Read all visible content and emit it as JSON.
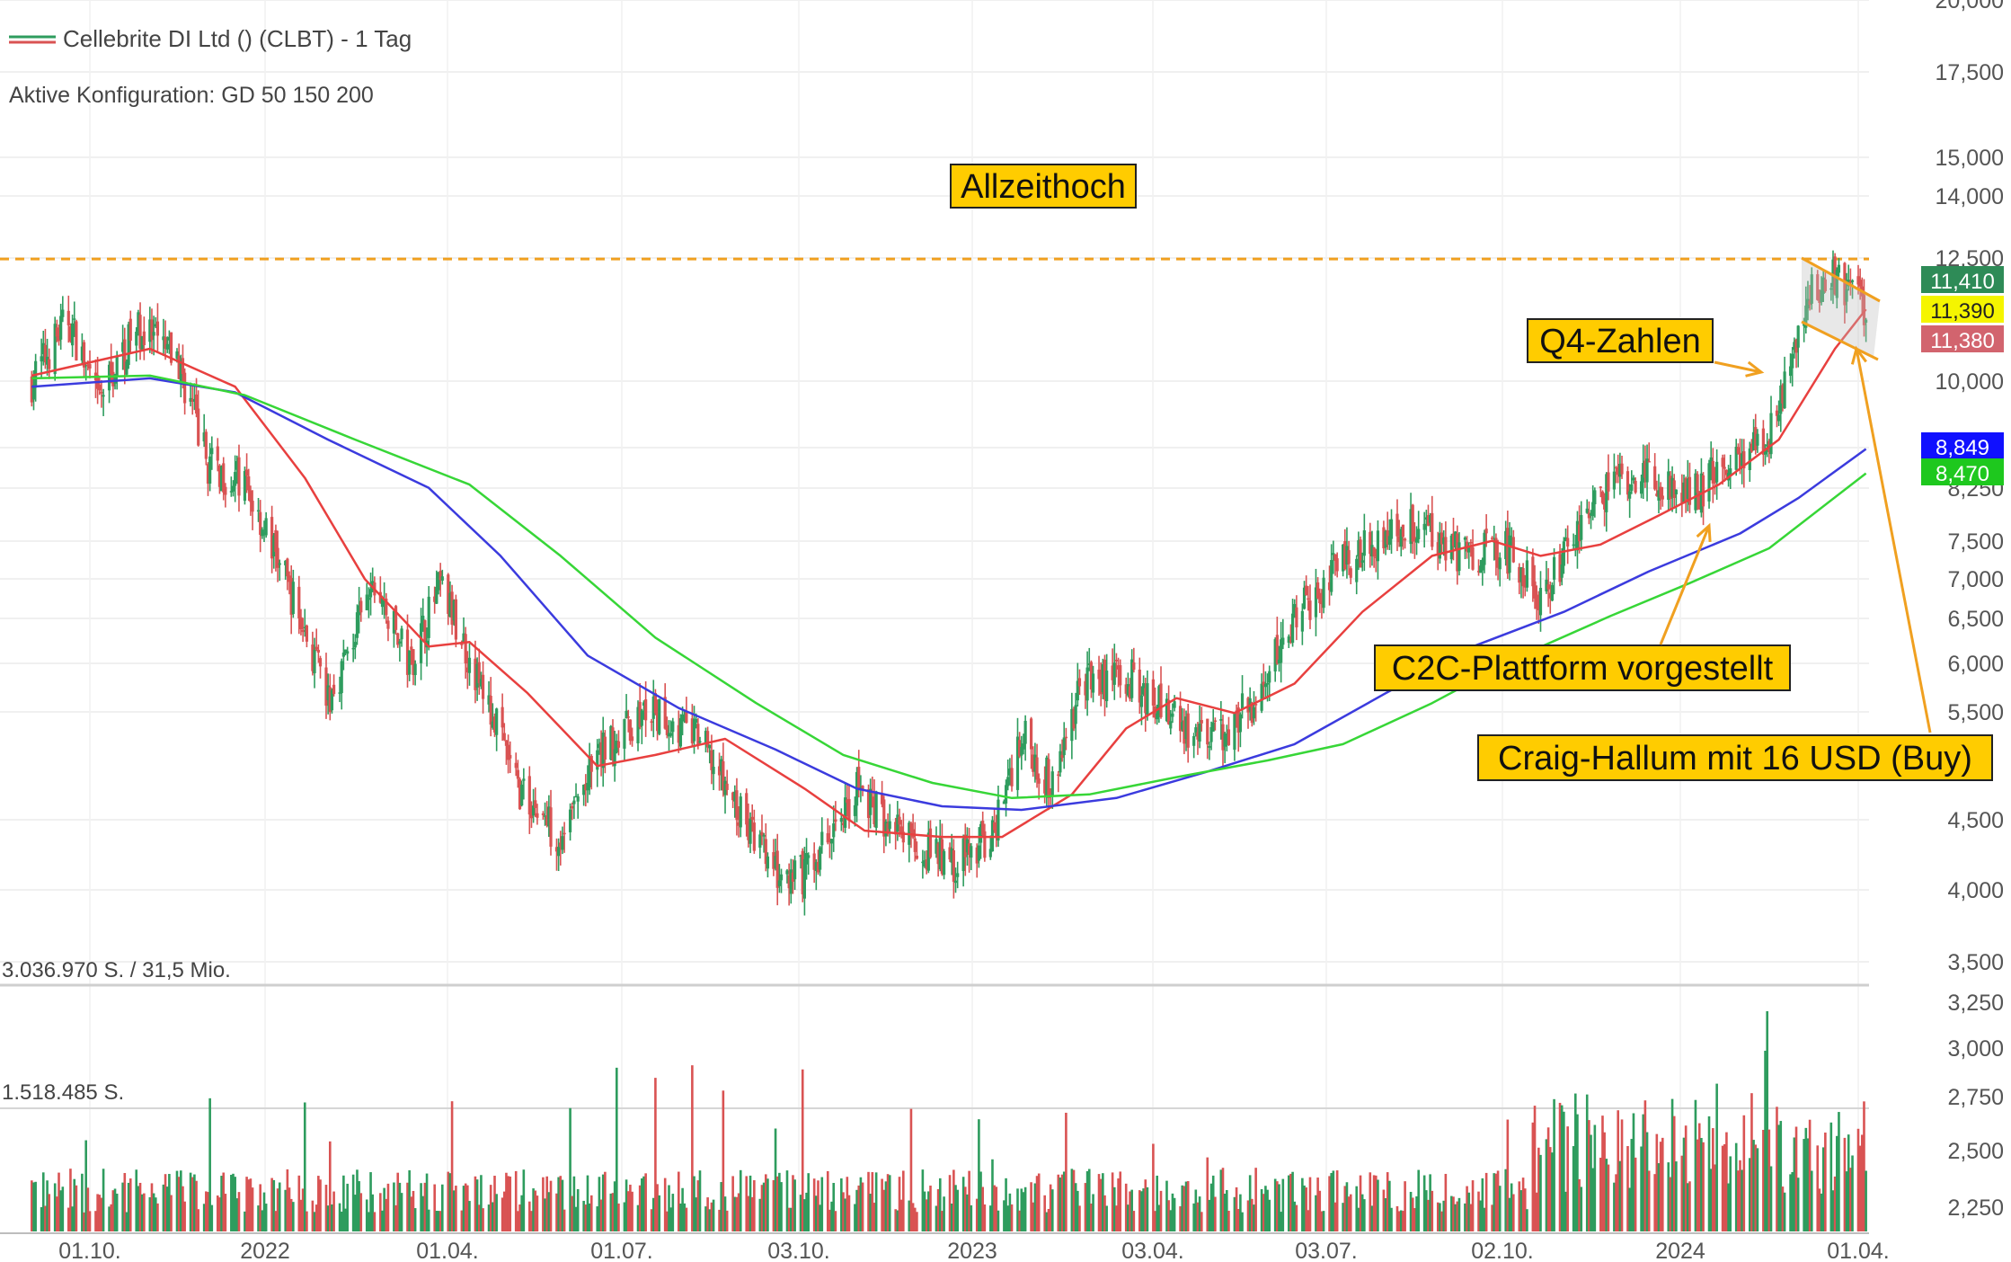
{
  "header": {
    "title": "Cellebrite DI Ltd () (CLBT) - 1 Tag",
    "config": "Aktive Konfiguration: GD 50 150 200"
  },
  "volume_panel": {
    "total_label": "3.036.970 S. / 31,5 Mio.",
    "half_label": "1.518.485 S."
  },
  "colors": {
    "up_candle": "#2e9c5e",
    "down_candle": "#d95353",
    "ma50": "#e8403f",
    "ma150": "#3b3bde",
    "ma200": "#37d637",
    "ath_line": "#f0a020",
    "annotation_bg": "#ffcc00",
    "badge_close": "#2e8b57",
    "badge_last": "#f5f500",
    "badge_ma50": "#d2646e",
    "badge_ma150": "#1010ff",
    "badge_ma200": "#1ec81e"
  },
  "chart_data": {
    "type": "line",
    "subtype": "candlestick with moving averages and volume",
    "x_ticks": [
      "01.10.",
      "2022",
      "01.04.",
      "01.07.",
      "03.10.",
      "2023",
      "03.04.",
      "03.07.",
      "02.10.",
      "2024",
      "01.04."
    ],
    "y_ticks": [
      "3,500",
      "4,000",
      "4,500",
      "5,500",
      "6,000",
      "6,500",
      "7,000",
      "7,500",
      "8,250",
      "8,849",
      "10,000",
      "12,500",
      "14,000",
      "15,000",
      "17,500",
      "20,000"
    ],
    "volume_y_ticks": [
      "2,250",
      "2,500",
      "2,750",
      "3,000",
      "3,250"
    ],
    "y_scale": "log",
    "ylim": [
      3.5,
      20.0
    ],
    "grid": true,
    "price_path": [
      {
        "date": "2021-09-01",
        "close": 10.0
      },
      {
        "date": "2021-09-20",
        "close": 11.2
      },
      {
        "date": "2021-10-05",
        "close": 9.6
      },
      {
        "date": "2021-10-25",
        "close": 11.0
      },
      {
        "date": "2021-11-15",
        "close": 10.4
      },
      {
        "date": "2021-12-01",
        "close": 8.6
      },
      {
        "date": "2021-12-20",
        "close": 8.3
      },
      {
        "date": "2022-01-10",
        "close": 7.0
      },
      {
        "date": "2022-02-01",
        "close": 5.6
      },
      {
        "date": "2022-02-25",
        "close": 6.9
      },
      {
        "date": "2022-03-15",
        "close": 6.0
      },
      {
        "date": "2022-03-31",
        "close": 6.9
      },
      {
        "date": "2022-04-20",
        "close": 5.8
      },
      {
        "date": "2022-05-10",
        "close": 4.8
      },
      {
        "date": "2022-06-01",
        "close": 4.4
      },
      {
        "date": "2022-06-25",
        "close": 5.2
      },
      {
        "date": "2022-07-15",
        "close": 5.5
      },
      {
        "date": "2022-08-10",
        "close": 5.3
      },
      {
        "date": "2022-09-01",
        "close": 4.6
      },
      {
        "date": "2022-09-25",
        "close": 4.0
      },
      {
        "date": "2022-10-10",
        "close": 4.2
      },
      {
        "date": "2022-11-01",
        "close": 4.8
      },
      {
        "date": "2022-11-25",
        "close": 4.4
      },
      {
        "date": "2022-12-20",
        "close": 4.2
      },
      {
        "date": "2023-01-10",
        "close": 4.4
      },
      {
        "date": "2023-01-25",
        "close": 5.3
      },
      {
        "date": "2023-02-10",
        "close": 4.8
      },
      {
        "date": "2023-02-25",
        "close": 5.8
      },
      {
        "date": "2023-03-20",
        "close": 5.9
      },
      {
        "date": "2023-04-10",
        "close": 5.5
      },
      {
        "date": "2023-05-01",
        "close": 5.2
      },
      {
        "date": "2023-05-25",
        "close": 5.6
      },
      {
        "date": "2023-06-15",
        "close": 6.5
      },
      {
        "date": "2023-07-05",
        "close": 7.1
      },
      {
        "date": "2023-07-25",
        "close": 7.5
      },
      {
        "date": "2023-08-20",
        "close": 7.8
      },
      {
        "date": "2023-09-10",
        "close": 7.3
      },
      {
        "date": "2023-10-01",
        "close": 7.4
      },
      {
        "date": "2023-10-20",
        "close": 6.8
      },
      {
        "date": "2023-11-10",
        "close": 7.6
      },
      {
        "date": "2023-11-25",
        "close": 8.3
      },
      {
        "date": "2023-12-15",
        "close": 8.4
      },
      {
        "date": "2024-01-10",
        "close": 8.2
      },
      {
        "date": "2024-01-25",
        "close": 8.8
      },
      {
        "date": "2024-02-15",
        "close": 9.0
      },
      {
        "date": "2024-02-28",
        "close": 10.8
      },
      {
        "date": "2024-03-05",
        "close": 11.6
      },
      {
        "date": "2024-03-15",
        "close": 12.1
      },
      {
        "date": "2024-03-25",
        "close": 11.9
      },
      {
        "date": "2024-04-05",
        "close": 11.4
      }
    ],
    "series": [
      {
        "name": "GD 50",
        "points": [
          {
            "date": "2021-09-01",
            "close": 10.1
          },
          {
            "date": "2021-11-01",
            "close": 10.6
          },
          {
            "date": "2021-12-15",
            "close": 9.9
          },
          {
            "date": "2022-01-20",
            "close": 8.4
          },
          {
            "date": "2022-02-20",
            "close": 7.0
          },
          {
            "date": "2022-03-25",
            "close": 6.2
          },
          {
            "date": "2022-04-15",
            "close": 6.25
          },
          {
            "date": "2022-05-15",
            "close": 5.7
          },
          {
            "date": "2022-06-20",
            "close": 5.0
          },
          {
            "date": "2022-07-20",
            "close": 5.1
          },
          {
            "date": "2022-08-25",
            "close": 5.25
          },
          {
            "date": "2022-10-05",
            "close": 4.8
          },
          {
            "date": "2022-11-05",
            "close": 4.45
          },
          {
            "date": "2022-12-15",
            "close": 4.4
          },
          {
            "date": "2023-01-15",
            "close": 4.4
          },
          {
            "date": "2023-02-20",
            "close": 4.75
          },
          {
            "date": "2023-03-20",
            "close": 5.35
          },
          {
            "date": "2023-04-15",
            "close": 5.65
          },
          {
            "date": "2023-05-15",
            "close": 5.5
          },
          {
            "date": "2023-06-15",
            "close": 5.8
          },
          {
            "date": "2023-07-20",
            "close": 6.6
          },
          {
            "date": "2023-08-25",
            "close": 7.3
          },
          {
            "date": "2023-09-25",
            "close": 7.5
          },
          {
            "date": "2023-10-20",
            "close": 7.3
          },
          {
            "date": "2023-11-20",
            "close": 7.45
          },
          {
            "date": "2023-12-20",
            "close": 7.85
          },
          {
            "date": "2024-01-20",
            "close": 8.3
          },
          {
            "date": "2024-02-20",
            "close": 9.0
          },
          {
            "date": "2024-03-20",
            "close": 10.6
          },
          {
            "date": "2024-04-05",
            "close": 11.38
          }
        ]
      },
      {
        "name": "GD 150",
        "points": [
          {
            "date": "2021-09-01",
            "close": 9.9
          },
          {
            "date": "2021-11-01",
            "close": 10.05
          },
          {
            "date": "2021-12-15",
            "close": 9.8
          },
          {
            "date": "2022-02-01",
            "close": 9.0
          },
          {
            "date": "2022-03-25",
            "close": 8.25
          },
          {
            "date": "2022-05-01",
            "close": 7.3
          },
          {
            "date": "2022-06-15",
            "close": 6.1
          },
          {
            "date": "2022-08-01",
            "close": 5.55
          },
          {
            "date": "2022-09-20",
            "close": 5.15
          },
          {
            "date": "2022-11-01",
            "close": 4.8
          },
          {
            "date": "2022-12-15",
            "close": 4.65
          },
          {
            "date": "2023-01-25",
            "close": 4.62
          },
          {
            "date": "2023-03-15",
            "close": 4.72
          },
          {
            "date": "2023-05-01",
            "close": 4.95
          },
          {
            "date": "2023-06-15",
            "close": 5.2
          },
          {
            "date": "2023-08-01",
            "close": 5.7
          },
          {
            "date": "2023-09-15",
            "close": 6.2
          },
          {
            "date": "2023-11-01",
            "close": 6.6
          },
          {
            "date": "2023-12-15",
            "close": 7.1
          },
          {
            "date": "2024-01-31",
            "close": 7.6
          },
          {
            "date": "2024-03-01",
            "close": 8.1
          },
          {
            "date": "2024-04-05",
            "close": 8.849
          }
        ]
      },
      {
        "name": "GD 200",
        "points": [
          {
            "date": "2021-09-01",
            "close": 10.05
          },
          {
            "date": "2021-11-01",
            "close": 10.1
          },
          {
            "date": "2021-12-20",
            "close": 9.75
          },
          {
            "date": "2022-02-15",
            "close": 9.0
          },
          {
            "date": "2022-04-15",
            "close": 8.3
          },
          {
            "date": "2022-06-01",
            "close": 7.3
          },
          {
            "date": "2022-07-20",
            "close": 6.3
          },
          {
            "date": "2022-09-10",
            "close": 5.6
          },
          {
            "date": "2022-10-25",
            "close": 5.1
          },
          {
            "date": "2022-12-10",
            "close": 4.85
          },
          {
            "date": "2023-01-20",
            "close": 4.72
          },
          {
            "date": "2023-03-01",
            "close": 4.75
          },
          {
            "date": "2023-04-15",
            "close": 4.9
          },
          {
            "date": "2023-06-01",
            "close": 5.05
          },
          {
            "date": "2023-07-10",
            "close": 5.2
          },
          {
            "date": "2023-08-25",
            "close": 5.6
          },
          {
            "date": "2023-10-10",
            "close": 6.1
          },
          {
            "date": "2023-11-25",
            "close": 6.55
          },
          {
            "date": "2024-01-05",
            "close": 6.95
          },
          {
            "date": "2024-02-15",
            "close": 7.4
          },
          {
            "date": "2024-04-05",
            "close": 8.47
          }
        ]
      }
    ],
    "last_values": [
      "11,410",
      "11,390",
      "11,380",
      "8,849",
      "8,470"
    ],
    "ath_level": 12.5,
    "annotations": [
      {
        "text": "Allzeithoch"
      },
      {
        "text": "Q4-Zahlen",
        "target_date": "2024-02-27",
        "target_value": 10.4
      },
      {
        "text": "C2C-Plattform vorgestellt",
        "target_date": "2024-01-18",
        "target_value": 7.9
      },
      {
        "text": "Craig-Hallum mit 16 USD (Buy)",
        "target_date": "2024-03-28",
        "target_value": 11.1
      }
    ]
  }
}
